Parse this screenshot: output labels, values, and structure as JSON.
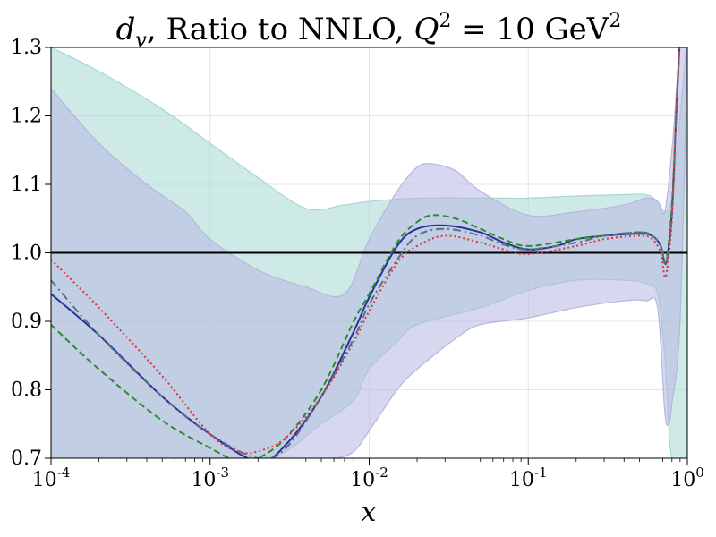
{
  "chart_data": {
    "type": "line",
    "title": {
      "var": "d",
      "sub": "v",
      "text": ", Ratio to NNLO, ",
      "q": "Q",
      "sup1": "2",
      "eq": " = 10 GeV",
      "sup2": "2"
    },
    "xlabel": "x",
    "ylabel": "",
    "x_scale": "log",
    "xlim": [
      0.0001,
      1
    ],
    "ylim": [
      0.7,
      1.3
    ],
    "grid": true,
    "x_ticks": [
      {
        "value": 0.0001,
        "base": "10",
        "exp": "-4"
      },
      {
        "value": 0.001,
        "base": "10",
        "exp": "-3"
      },
      {
        "value": 0.01,
        "base": "10",
        "exp": "-2"
      },
      {
        "value": 0.1,
        "base": "10",
        "exp": "-1"
      },
      {
        "value": 1,
        "base": "10",
        "exp": "0"
      }
    ],
    "y_ticks": [
      "0.7",
      "0.8",
      "0.9",
      "1.0",
      "1.1",
      "1.2",
      "1.3"
    ],
    "reference_line": 1.0,
    "bands": [
      {
        "color": "#a6d8d4",
        "upper": [
          [
            0.0001,
            1.3
          ],
          [
            0.0002,
            1.265
          ],
          [
            0.0005,
            1.21
          ],
          [
            0.001,
            1.16
          ],
          [
            0.002,
            1.11
          ],
          [
            0.004,
            1.065
          ],
          [
            0.007,
            1.07
          ],
          [
            0.01,
            1.075
          ],
          [
            0.02,
            1.08
          ],
          [
            0.05,
            1.08
          ],
          [
            0.1,
            1.08
          ],
          [
            0.2,
            1.083
          ],
          [
            0.4,
            1.085
          ],
          [
            0.55,
            1.085
          ],
          [
            0.65,
            1.075
          ],
          [
            0.72,
            1.06
          ],
          [
            0.8,
            1.08
          ],
          [
            0.9,
            1.2
          ],
          [
            1,
            1.32
          ]
        ],
        "lower": [
          [
            0.0001,
            0.7
          ],
          [
            0.0003,
            0.7
          ],
          [
            0.001,
            0.7
          ],
          [
            0.002,
            0.7
          ],
          [
            0.003,
            0.71
          ],
          [
            0.005,
            0.75
          ],
          [
            0.008,
            0.785
          ],
          [
            0.01,
            0.83
          ],
          [
            0.015,
            0.87
          ],
          [
            0.02,
            0.895
          ],
          [
            0.05,
            0.92
          ],
          [
            0.1,
            0.945
          ],
          [
            0.2,
            0.96
          ],
          [
            0.4,
            0.96
          ],
          [
            0.55,
            0.955
          ],
          [
            0.65,
            0.94
          ],
          [
            0.72,
            0.85
          ],
          [
            0.8,
            0.7
          ],
          [
            1,
            0.7
          ]
        ]
      },
      {
        "color": "#b6b6e2",
        "upper": [
          [
            0.0001,
            1.24
          ],
          [
            0.0002,
            1.16
          ],
          [
            0.0004,
            1.1
          ],
          [
            0.0007,
            1.06
          ],
          [
            0.001,
            1.02
          ],
          [
            0.002,
            0.975
          ],
          [
            0.004,
            0.95
          ],
          [
            0.007,
            0.94
          ],
          [
            0.01,
            1.02
          ],
          [
            0.015,
            1.09
          ],
          [
            0.02,
            1.125
          ],
          [
            0.025,
            1.13
          ],
          [
            0.035,
            1.12
          ],
          [
            0.05,
            1.09
          ],
          [
            0.1,
            1.055
          ],
          [
            0.2,
            1.06
          ],
          [
            0.4,
            1.07
          ],
          [
            0.55,
            1.08
          ],
          [
            0.65,
            1.075
          ],
          [
            0.72,
            1.06
          ],
          [
            0.8,
            1.15
          ],
          [
            0.9,
            1.3
          ],
          [
            1,
            1.3
          ]
        ],
        "lower": [
          [
            0.0001,
            0.7
          ],
          [
            0.0005,
            0.7
          ],
          [
            0.001,
            0.7
          ],
          [
            0.003,
            0.7
          ],
          [
            0.006,
            0.7
          ],
          [
            0.008,
            0.71
          ],
          [
            0.01,
            0.74
          ],
          [
            0.015,
            0.8
          ],
          [
            0.02,
            0.83
          ],
          [
            0.035,
            0.875
          ],
          [
            0.05,
            0.895
          ],
          [
            0.1,
            0.905
          ],
          [
            0.2,
            0.92
          ],
          [
            0.4,
            0.93
          ],
          [
            0.55,
            0.93
          ],
          [
            0.65,
            0.92
          ],
          [
            0.72,
            0.77
          ],
          [
            0.76,
            0.75
          ],
          [
            0.8,
            0.78
          ],
          [
            0.9,
            0.9
          ],
          [
            1,
            1.3
          ]
        ]
      }
    ],
    "series": [
      {
        "color": "#2b2f9e",
        "dash": "solid",
        "points": [
          [
            0.0001,
            0.94
          ],
          [
            0.0002,
            0.88
          ],
          [
            0.0005,
            0.79
          ],
          [
            0.001,
            0.735
          ],
          [
            0.002,
            0.695
          ],
          [
            0.003,
            0.72
          ],
          [
            0.005,
            0.79
          ],
          [
            0.008,
            0.885
          ],
          [
            0.01,
            0.935
          ],
          [
            0.015,
            1.01
          ],
          [
            0.02,
            1.035
          ],
          [
            0.03,
            1.04
          ],
          [
            0.05,
            1.03
          ],
          [
            0.07,
            1.015
          ],
          [
            0.1,
            1.005
          ],
          [
            0.15,
            1.01
          ],
          [
            0.2,
            1.02
          ],
          [
            0.3,
            1.025
          ],
          [
            0.5,
            1.028
          ],
          [
            0.6,
            1.025
          ],
          [
            0.68,
            1.01
          ],
          [
            0.72,
            0.985
          ],
          [
            0.75,
            0.995
          ],
          [
            0.8,
            1.06
          ],
          [
            0.85,
            1.2
          ],
          [
            0.9,
            1.32
          ]
        ]
      },
      {
        "color": "#2e8b2e",
        "dash": "dashed",
        "points": [
          [
            0.0001,
            0.895
          ],
          [
            0.0002,
            0.83
          ],
          [
            0.0005,
            0.755
          ],
          [
            0.001,
            0.715
          ],
          [
            0.0015,
            0.695
          ],
          [
            0.002,
            0.7
          ],
          [
            0.003,
            0.73
          ],
          [
            0.005,
            0.8
          ],
          [
            0.008,
            0.9
          ],
          [
            0.01,
            0.94
          ],
          [
            0.015,
            1.015
          ],
          [
            0.02,
            1.045
          ],
          [
            0.025,
            1.055
          ],
          [
            0.035,
            1.05
          ],
          [
            0.05,
            1.035
          ],
          [
            0.07,
            1.02
          ],
          [
            0.1,
            1.01
          ],
          [
            0.2,
            1.02
          ],
          [
            0.3,
            1.025
          ],
          [
            0.5,
            1.03
          ],
          [
            0.6,
            1.025
          ],
          [
            0.68,
            1.01
          ],
          [
            0.72,
            0.985
          ],
          [
            0.75,
            1.0
          ],
          [
            0.8,
            1.07
          ],
          [
            0.85,
            1.2
          ],
          [
            0.9,
            1.32
          ]
        ]
      },
      {
        "color": "#5a7285",
        "dash": "dashdot",
        "points": [
          [
            0.0001,
            0.96
          ],
          [
            0.0002,
            0.88
          ],
          [
            0.0005,
            0.79
          ],
          [
            0.001,
            0.735
          ],
          [
            0.002,
            0.7
          ],
          [
            0.003,
            0.715
          ],
          [
            0.005,
            0.79
          ],
          [
            0.008,
            0.875
          ],
          [
            0.01,
            0.925
          ],
          [
            0.015,
            0.99
          ],
          [
            0.02,
            1.025
          ],
          [
            0.03,
            1.035
          ],
          [
            0.05,
            1.025
          ],
          [
            0.07,
            1.012
          ],
          [
            0.1,
            1.005
          ],
          [
            0.2,
            1.015
          ],
          [
            0.3,
            1.025
          ],
          [
            0.5,
            1.03
          ],
          [
            0.6,
            1.025
          ],
          [
            0.68,
            1.01
          ],
          [
            0.72,
            0.985
          ],
          [
            0.75,
            0.995
          ],
          [
            0.8,
            1.06
          ],
          [
            0.85,
            1.2
          ],
          [
            0.9,
            1.32
          ]
        ]
      },
      {
        "color": "#e0303a",
        "dash": "dotted",
        "points": [
          [
            0.0001,
            0.99
          ],
          [
            0.0002,
            0.92
          ],
          [
            0.0005,
            0.82
          ],
          [
            0.001,
            0.735
          ],
          [
            0.0015,
            0.71
          ],
          [
            0.002,
            0.71
          ],
          [
            0.003,
            0.73
          ],
          [
            0.005,
            0.79
          ],
          [
            0.008,
            0.87
          ],
          [
            0.01,
            0.915
          ],
          [
            0.015,
            0.985
          ],
          [
            0.02,
            1.01
          ],
          [
            0.03,
            1.025
          ],
          [
            0.05,
            1.015
          ],
          [
            0.07,
            1.005
          ],
          [
            0.1,
            0.998
          ],
          [
            0.2,
            1.01
          ],
          [
            0.3,
            1.02
          ],
          [
            0.5,
            1.025
          ],
          [
            0.6,
            1.02
          ],
          [
            0.68,
            1.0
          ],
          [
            0.72,
            0.965
          ],
          [
            0.75,
            0.98
          ],
          [
            0.8,
            1.05
          ],
          [
            0.85,
            1.2
          ],
          [
            0.9,
            1.32
          ]
        ]
      }
    ]
  }
}
